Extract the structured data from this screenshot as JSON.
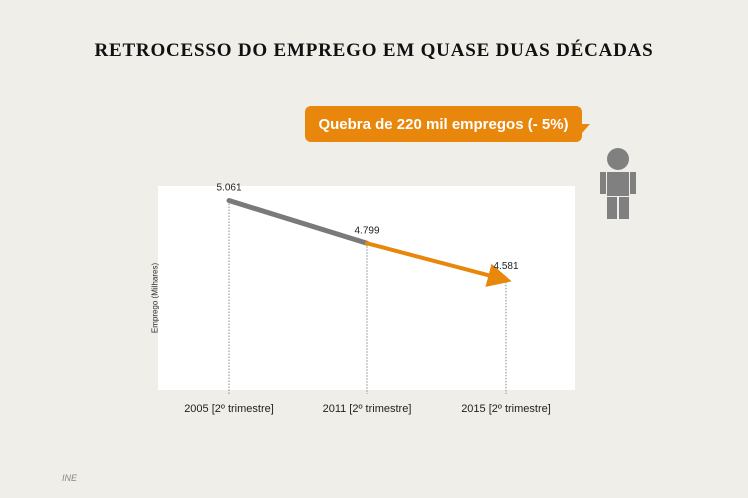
{
  "page": {
    "title": "RETROCESSO DO EMPREGO EM QUASE DUAS DÉCADAS",
    "callout": "Quebra de 220 mil empregos (- 5%)",
    "source": "INE"
  },
  "colors": {
    "background": "#efeee8",
    "accent": "#e8870c",
    "first_segment": "#7a7a7a",
    "person_icon": "#808080"
  },
  "chart_data": {
    "type": "line",
    "categories": [
      "2005 [2º trimestre]",
      "2011 [2º trimestre]",
      "2015 [2º trimestre]"
    ],
    "values": [
      5061,
      4799,
      4581
    ],
    "data_labels": [
      "5.061",
      "4.799",
      "4.581"
    ],
    "title": "",
    "xlabel": "",
    "ylabel": "Emprego (Milhares)",
    "ylim": [
      3900,
      5150
    ],
    "grid": false,
    "legend": "none",
    "segment_colors": [
      "#7a7a7a",
      "#e8870c"
    ],
    "drop_lines": true
  }
}
